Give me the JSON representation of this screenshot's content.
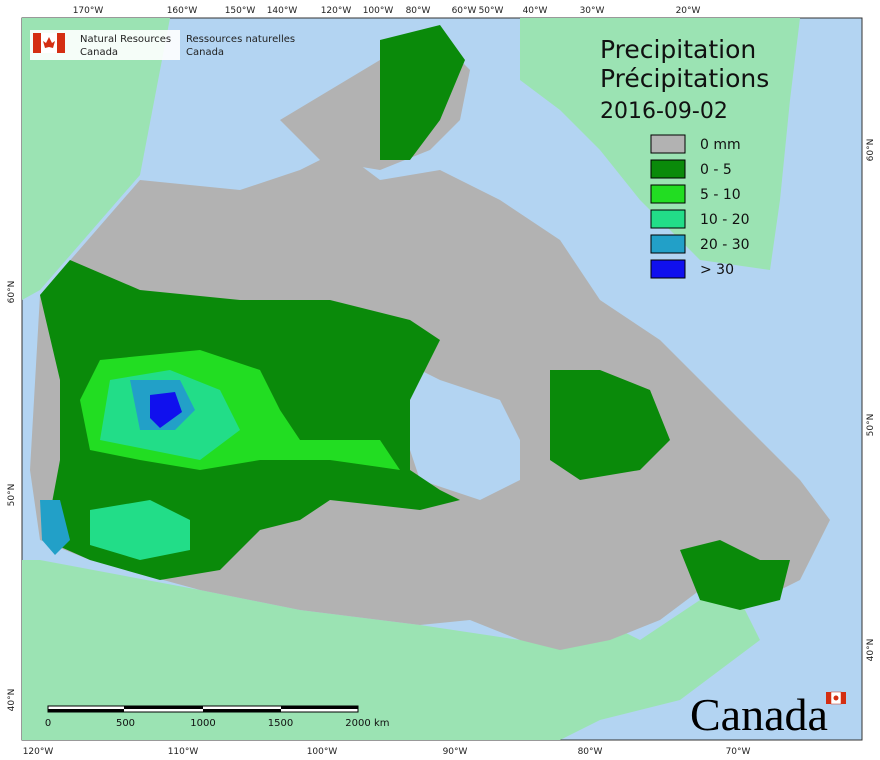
{
  "agency": {
    "english": [
      "Natural Resources",
      "Canada"
    ],
    "french": [
      "Ressources naturelles",
      "Canada"
    ]
  },
  "title": {
    "lines": [
      "Precipitation",
      "Précipitations"
    ],
    "date": "2016-09-02"
  },
  "legend": [
    {
      "label": "0 mm",
      "color": "#b2b2b2"
    },
    {
      "label": "0 - 5",
      "color": "#0a8a0a"
    },
    {
      "label": "5 - 10",
      "color": "#22dd22"
    },
    {
      "label": "10 - 20",
      "color": "#22dd88"
    },
    {
      "label": "20 - 30",
      "color": "#22a0c8"
    },
    {
      "label": "> 30",
      "color": "#1010ee"
    }
  ],
  "graticule": {
    "top": [
      "170°W",
      "160°W",
      "150°W",
      "140°W",
      "120°W",
      "100°W",
      "80°W",
      "60°W",
      "50°W",
      "40°W",
      "30°W",
      "20°W"
    ],
    "bottom": [
      "120°W",
      "110°W",
      "100°W",
      "90°W",
      "80°W",
      "70°W"
    ],
    "left": [
      "60°N",
      "50°N",
      "40°N"
    ],
    "right": [
      "60°N",
      "50°N",
      "40°N"
    ]
  },
  "scale_bar": {
    "ticks": [
      0,
      500,
      1000,
      1500,
      2000
    ],
    "unit": "km"
  },
  "wordmark": "Canada"
}
